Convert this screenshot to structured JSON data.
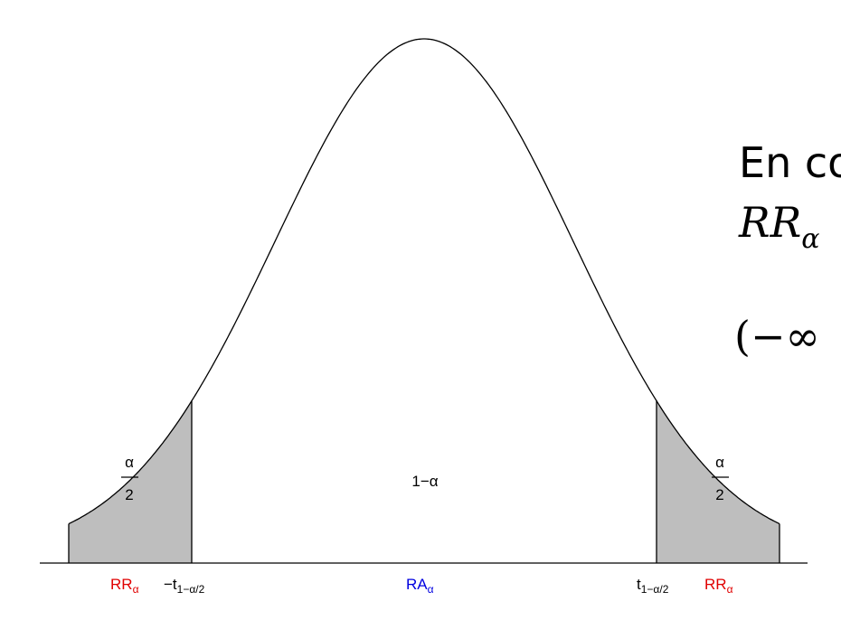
{
  "diagram": {
    "curve": "t-density",
    "shaded_tails": true,
    "colors": {
      "curve": "#000000",
      "shade": "#bebebe",
      "rejection": "#e00000",
      "acceptance": "#0000e0"
    },
    "left_tail": {
      "prob_numerator": "α",
      "prob_denominator": "2",
      "region_base": "RR",
      "region_sub": "α",
      "critical_prefix": "−t",
      "critical_sub": "1−α/2"
    },
    "center": {
      "prob_label": "1−α",
      "region_base": "RA",
      "region_sub": "α"
    },
    "right_tail": {
      "prob_numerator": "α",
      "prob_denominator": "2",
      "region_base": "RR",
      "region_sub": "α",
      "critical_prefix": "t",
      "critical_sub": "1−α/2"
    }
  },
  "slide_text": {
    "line1": "En co",
    "line2_base": "RR",
    "line2_sub": "α",
    "line3": "(−∞"
  }
}
